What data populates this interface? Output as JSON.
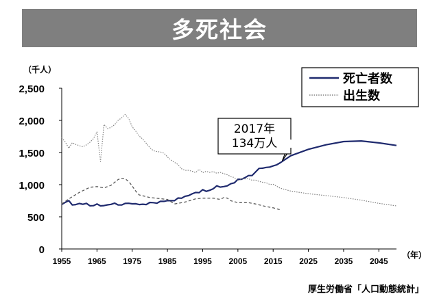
{
  "title": "多死社会",
  "source": "厚生労働省「人口動態統計」",
  "chart_data": {
    "type": "line",
    "y_unit_label": "（千人）",
    "x_unit_label": "（年）",
    "xlim": [
      1955,
      2050
    ],
    "ylim": [
      0,
      2500
    ],
    "x_ticks": [
      1955,
      1965,
      1975,
      1985,
      1995,
      2005,
      2015,
      2025,
      2035,
      2045
    ],
    "y_ticks": [
      {
        "value": 0,
        "label": "0"
      },
      {
        "value": 500,
        "label": "500"
      },
      {
        "value": 1000,
        "label": "1,000"
      },
      {
        "value": 1500,
        "label": "1,500"
      },
      {
        "value": 2000,
        "label": "2,000"
      },
      {
        "value": 2500,
        "label": "2,500"
      }
    ],
    "legend_position": "top-right",
    "annotation": {
      "lines": [
        "2017年",
        "134万人"
      ],
      "x": 2017,
      "y": 1340
    },
    "series": [
      {
        "name": "死亡者数",
        "style": "solid",
        "color": "#1f2a6e",
        "points": [
          [
            1955,
            694
          ],
          [
            1956,
            724
          ],
          [
            1957,
            752
          ],
          [
            1958,
            684
          ],
          [
            1959,
            690
          ],
          [
            1960,
            707
          ],
          [
            1961,
            695
          ],
          [
            1962,
            710
          ],
          [
            1963,
            671
          ],
          [
            1964,
            673
          ],
          [
            1965,
            700
          ],
          [
            1966,
            670
          ],
          [
            1967,
            675
          ],
          [
            1968,
            686
          ],
          [
            1969,
            694
          ],
          [
            1970,
            713
          ],
          [
            1971,
            685
          ],
          [
            1972,
            684
          ],
          [
            1973,
            709
          ],
          [
            1974,
            711
          ],
          [
            1975,
            702
          ],
          [
            1976,
            703
          ],
          [
            1977,
            690
          ],
          [
            1978,
            696
          ],
          [
            1979,
            690
          ],
          [
            1980,
            723
          ],
          [
            1981,
            720
          ],
          [
            1982,
            712
          ],
          [
            1983,
            740
          ],
          [
            1984,
            740
          ],
          [
            1985,
            752
          ],
          [
            1986,
            751
          ],
          [
            1987,
            751
          ],
          [
            1988,
            793
          ],
          [
            1989,
            789
          ],
          [
            1990,
            820
          ],
          [
            1991,
            830
          ],
          [
            1992,
            857
          ],
          [
            1993,
            879
          ],
          [
            1994,
            876
          ],
          [
            1995,
            922
          ],
          [
            1996,
            896
          ],
          [
            1997,
            913
          ],
          [
            1998,
            936
          ],
          [
            1999,
            982
          ],
          [
            2000,
            962
          ],
          [
            2001,
            970
          ],
          [
            2002,
            982
          ],
          [
            2003,
            1015
          ],
          [
            2004,
            1029
          ],
          [
            2005,
            1084
          ],
          [
            2006,
            1084
          ],
          [
            2007,
            1108
          ],
          [
            2008,
            1142
          ],
          [
            2009,
            1142
          ],
          [
            2010,
            1197
          ],
          [
            2011,
            1253
          ],
          [
            2012,
            1256
          ],
          [
            2013,
            1268
          ],
          [
            2014,
            1273
          ],
          [
            2015,
            1291
          ],
          [
            2016,
            1308
          ],
          [
            2017,
            1340
          ],
          [
            2020,
            1450
          ],
          [
            2025,
            1550
          ],
          [
            2030,
            1620
          ],
          [
            2035,
            1670
          ],
          [
            2040,
            1680
          ],
          [
            2045,
            1650
          ],
          [
            2050,
            1610
          ]
        ]
      },
      {
        "name": "出生数",
        "style": "dotted",
        "color": "#808080",
        "points": [
          [
            1955,
            1731
          ],
          [
            1956,
            1665
          ],
          [
            1957,
            1567
          ],
          [
            1958,
            1653
          ],
          [
            1959,
            1626
          ],
          [
            1960,
            1606
          ],
          [
            1961,
            1589
          ],
          [
            1962,
            1619
          ],
          [
            1963,
            1660
          ],
          [
            1964,
            1717
          ],
          [
            1965,
            1824
          ],
          [
            1966,
            1361
          ],
          [
            1967,
            1936
          ],
          [
            1968,
            1872
          ],
          [
            1969,
            1890
          ],
          [
            1970,
            1934
          ],
          [
            1971,
            2001
          ],
          [
            1972,
            2039
          ],
          [
            1973,
            2092
          ],
          [
            1974,
            2030
          ],
          [
            1975,
            1901
          ],
          [
            1976,
            1833
          ],
          [
            1977,
            1755
          ],
          [
            1978,
            1709
          ],
          [
            1979,
            1643
          ],
          [
            1980,
            1577
          ],
          [
            1981,
            1529
          ],
          [
            1982,
            1515
          ],
          [
            1983,
            1509
          ],
          [
            1984,
            1490
          ],
          [
            1985,
            1432
          ],
          [
            1986,
            1383
          ],
          [
            1987,
            1347
          ],
          [
            1988,
            1314
          ],
          [
            1989,
            1247
          ],
          [
            1990,
            1222
          ],
          [
            1991,
            1223
          ],
          [
            1992,
            1209
          ],
          [
            1993,
            1188
          ],
          [
            1994,
            1238
          ],
          [
            1995,
            1187
          ],
          [
            1996,
            1207
          ],
          [
            1997,
            1192
          ],
          [
            1998,
            1203
          ],
          [
            1999,
            1178
          ],
          [
            2000,
            1191
          ],
          [
            2001,
            1171
          ],
          [
            2002,
            1154
          ],
          [
            2003,
            1124
          ],
          [
            2004,
            1111
          ],
          [
            2005,
            1063
          ],
          [
            2006,
            1093
          ],
          [
            2007,
            1090
          ],
          [
            2008,
            1091
          ],
          [
            2009,
            1070
          ],
          [
            2010,
            1071
          ],
          [
            2011,
            1051
          ],
          [
            2012,
            1037
          ],
          [
            2013,
            1030
          ],
          [
            2014,
            1004
          ],
          [
            2015,
            1006
          ],
          [
            2016,
            977
          ],
          [
            2017,
            946
          ],
          [
            2020,
            900
          ],
          [
            2025,
            860
          ],
          [
            2030,
            830
          ],
          [
            2035,
            800
          ],
          [
            2040,
            760
          ],
          [
            2045,
            710
          ],
          [
            2050,
            670
          ]
        ]
      },
      {
        "name": "",
        "style": "dashed",
        "color": "#595959",
        "points": [
          [
            1955,
            700
          ],
          [
            1957,
            780
          ],
          [
            1960,
            880
          ],
          [
            1963,
            960
          ],
          [
            1965,
            970
          ],
          [
            1967,
            950
          ],
          [
            1969,
            990
          ],
          [
            1971,
            1080
          ],
          [
            1972,
            1100
          ],
          [
            1973,
            1090
          ],
          [
            1974,
            1050
          ],
          [
            1975,
            980
          ],
          [
            1976,
            900
          ],
          [
            1977,
            840
          ],
          [
            1980,
            800
          ],
          [
            1985,
            770
          ],
          [
            1987,
            700
          ],
          [
            1990,
            730
          ],
          [
            1993,
            780
          ],
          [
            1995,
            790
          ],
          [
            1998,
            790
          ],
          [
            2000,
            770
          ],
          [
            2001,
            800
          ],
          [
            2002,
            790
          ],
          [
            2003,
            750
          ],
          [
            2005,
            720
          ],
          [
            2008,
            720
          ],
          [
            2010,
            700
          ],
          [
            2013,
            660
          ],
          [
            2015,
            640
          ],
          [
            2017,
            610
          ]
        ]
      }
    ]
  }
}
